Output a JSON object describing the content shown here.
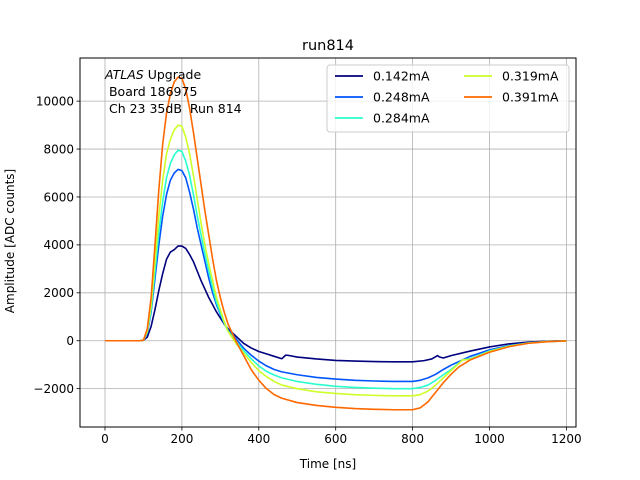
{
  "chart_data": {
    "type": "line",
    "title": "run814",
    "xlabel": "Time [ns]",
    "ylabel": "Amplitude [ADC counts]",
    "xlim": [
      -65,
      1225
    ],
    "ylim": [
      -3600,
      11800
    ],
    "xticks": [
      0,
      200,
      400,
      600,
      800,
      1000,
      1200
    ],
    "yticks": [
      -2000,
      0,
      2000,
      4000,
      6000,
      8000,
      10000
    ],
    "grid": true,
    "legend_position": "top-right",
    "legend_columns": 2,
    "annotation": {
      "line1_italic": "ATLAS",
      "line1_rest": " Upgrade",
      "line2": " Board 186975",
      "line3": " Ch 23 35dB  Run 814"
    },
    "series": [
      {
        "name": "0.142mA",
        "color": "#00007f",
        "points": [
          [
            0,
            0
          ],
          [
            90,
            0
          ],
          [
            100,
            20
          ],
          [
            110,
            150
          ],
          [
            120,
            600
          ],
          [
            130,
            1300
          ],
          [
            140,
            2100
          ],
          [
            150,
            2800
          ],
          [
            160,
            3400
          ],
          [
            170,
            3700
          ],
          [
            180,
            3800
          ],
          [
            190,
            3950
          ],
          [
            200,
            3950
          ],
          [
            210,
            3850
          ],
          [
            220,
            3600
          ],
          [
            230,
            3300
          ],
          [
            240,
            2900
          ],
          [
            250,
            2500
          ],
          [
            260,
            2150
          ],
          [
            270,
            1800
          ],
          [
            280,
            1500
          ],
          [
            290,
            1200
          ],
          [
            300,
            950
          ],
          [
            310,
            700
          ],
          [
            320,
            500
          ],
          [
            340,
            200
          ],
          [
            360,
            -100
          ],
          [
            380,
            -300
          ],
          [
            400,
            -450
          ],
          [
            420,
            -550
          ],
          [
            440,
            -650
          ],
          [
            460,
            -750
          ],
          [
            470,
            -600
          ],
          [
            480,
            -620
          ],
          [
            500,
            -680
          ],
          [
            550,
            -760
          ],
          [
            600,
            -820
          ],
          [
            650,
            -850
          ],
          [
            700,
            -870
          ],
          [
            750,
            -880
          ],
          [
            800,
            -880
          ],
          [
            830,
            -830
          ],
          [
            850,
            -760
          ],
          [
            865,
            -620
          ],
          [
            870,
            -680
          ],
          [
            880,
            -720
          ],
          [
            900,
            -620
          ],
          [
            950,
            -430
          ],
          [
            1000,
            -260
          ],
          [
            1050,
            -130
          ],
          [
            1100,
            -60
          ],
          [
            1150,
            -20
          ],
          [
            1200,
            0
          ]
        ]
      },
      {
        "name": "0.248mA",
        "color": "#0055ff",
        "points": [
          [
            0,
            0
          ],
          [
            90,
            0
          ],
          [
            100,
            20
          ],
          [
            110,
            300
          ],
          [
            120,
            1200
          ],
          [
            130,
            2600
          ],
          [
            140,
            4000
          ],
          [
            150,
            5200
          ],
          [
            160,
            6100
          ],
          [
            170,
            6700
          ],
          [
            180,
            7000
          ],
          [
            190,
            7150
          ],
          [
            200,
            7100
          ],
          [
            210,
            6800
          ],
          [
            220,
            6200
          ],
          [
            230,
            5500
          ],
          [
            240,
            4700
          ],
          [
            250,
            4000
          ],
          [
            260,
            3300
          ],
          [
            270,
            2600
          ],
          [
            280,
            2000
          ],
          [
            290,
            1500
          ],
          [
            300,
            1100
          ],
          [
            310,
            750
          ],
          [
            320,
            450
          ],
          [
            340,
            100
          ],
          [
            360,
            -300
          ],
          [
            380,
            -600
          ],
          [
            400,
            -850
          ],
          [
            420,
            -1050
          ],
          [
            440,
            -1200
          ],
          [
            460,
            -1300
          ],
          [
            500,
            -1420
          ],
          [
            550,
            -1530
          ],
          [
            600,
            -1600
          ],
          [
            650,
            -1650
          ],
          [
            700,
            -1680
          ],
          [
            750,
            -1700
          ],
          [
            800,
            -1700
          ],
          [
            820,
            -1650
          ],
          [
            840,
            -1550
          ],
          [
            860,
            -1400
          ],
          [
            880,
            -1200
          ],
          [
            900,
            -1020
          ],
          [
            950,
            -650
          ],
          [
            1000,
            -380
          ],
          [
            1050,
            -200
          ],
          [
            1100,
            -90
          ],
          [
            1150,
            -30
          ],
          [
            1200,
            -10
          ]
        ]
      },
      {
        "name": "0.284mA",
        "color": "#29ffce",
        "points": [
          [
            0,
            0
          ],
          [
            90,
            0
          ],
          [
            100,
            20
          ],
          [
            110,
            350
          ],
          [
            120,
            1300
          ],
          [
            130,
            2900
          ],
          [
            140,
            4500
          ],
          [
            150,
            5800
          ],
          [
            160,
            6800
          ],
          [
            170,
            7400
          ],
          [
            180,
            7750
          ],
          [
            190,
            7950
          ],
          [
            200,
            7900
          ],
          [
            210,
            7500
          ],
          [
            220,
            6900
          ],
          [
            230,
            6100
          ],
          [
            240,
            5200
          ],
          [
            250,
            4400
          ],
          [
            260,
            3600
          ],
          [
            270,
            2900
          ],
          [
            280,
            2200
          ],
          [
            290,
            1600
          ],
          [
            300,
            1150
          ],
          [
            310,
            750
          ],
          [
            320,
            400
          ],
          [
            340,
            0
          ],
          [
            360,
            -400
          ],
          [
            380,
            -750
          ],
          [
            400,
            -1050
          ],
          [
            420,
            -1280
          ],
          [
            440,
            -1430
          ],
          [
            460,
            -1550
          ],
          [
            500,
            -1700
          ],
          [
            550,
            -1820
          ],
          [
            600,
            -1900
          ],
          [
            650,
            -1950
          ],
          [
            700,
            -1980
          ],
          [
            750,
            -2000
          ],
          [
            800,
            -2000
          ],
          [
            820,
            -1950
          ],
          [
            840,
            -1850
          ],
          [
            860,
            -1650
          ],
          [
            880,
            -1420
          ],
          [
            900,
            -1200
          ],
          [
            930,
            -800
          ],
          [
            950,
            -750
          ],
          [
            1000,
            -430
          ],
          [
            1050,
            -220
          ],
          [
            1100,
            -100
          ],
          [
            1150,
            -35
          ],
          [
            1200,
            -10
          ]
        ]
      },
      {
        "name": "0.319mA",
        "color": "#ceff29",
        "points": [
          [
            0,
            0
          ],
          [
            90,
            0
          ],
          [
            100,
            20
          ],
          [
            110,
            400
          ],
          [
            120,
            1500
          ],
          [
            130,
            3300
          ],
          [
            140,
            5200
          ],
          [
            150,
            6700
          ],
          [
            160,
            7800
          ],
          [
            170,
            8400
          ],
          [
            180,
            8800
          ],
          [
            190,
            9000
          ],
          [
            200,
            8950
          ],
          [
            210,
            8500
          ],
          [
            220,
            7800
          ],
          [
            230,
            6900
          ],
          [
            240,
            5900
          ],
          [
            250,
            4900
          ],
          [
            260,
            4000
          ],
          [
            270,
            3200
          ],
          [
            280,
            2500
          ],
          [
            290,
            1800
          ],
          [
            300,
            1300
          ],
          [
            310,
            800
          ],
          [
            320,
            400
          ],
          [
            340,
            -100
          ],
          [
            360,
            -500
          ],
          [
            380,
            -900
          ],
          [
            400,
            -1250
          ],
          [
            420,
            -1500
          ],
          [
            440,
            -1700
          ],
          [
            460,
            -1850
          ],
          [
            500,
            -2000
          ],
          [
            550,
            -2130
          ],
          [
            600,
            -2200
          ],
          [
            650,
            -2250
          ],
          [
            700,
            -2280
          ],
          [
            750,
            -2300
          ],
          [
            800,
            -2300
          ],
          [
            820,
            -2250
          ],
          [
            840,
            -2100
          ],
          [
            860,
            -1850
          ],
          [
            880,
            -1550
          ],
          [
            900,
            -1250
          ],
          [
            930,
            -800
          ],
          [
            950,
            -780
          ],
          [
            1000,
            -450
          ],
          [
            1050,
            -230
          ],
          [
            1100,
            -100
          ],
          [
            1150,
            -35
          ],
          [
            1200,
            -10
          ]
        ]
      },
      {
        "name": "0.391mA",
        "color": "#ff6800",
        "points": [
          [
            0,
            0
          ],
          [
            90,
            0
          ],
          [
            100,
            20
          ],
          [
            110,
            500
          ],
          [
            120,
            1800
          ],
          [
            130,
            4000
          ],
          [
            140,
            6300
          ],
          [
            150,
            8200
          ],
          [
            160,
            9500
          ],
          [
            170,
            10300
          ],
          [
            180,
            10800
          ],
          [
            190,
            11000
          ],
          [
            200,
            10950
          ],
          [
            210,
            10500
          ],
          [
            220,
            9700
          ],
          [
            230,
            8700
          ],
          [
            240,
            7600
          ],
          [
            250,
            6500
          ],
          [
            260,
            5400
          ],
          [
            270,
            4400
          ],
          [
            280,
            3400
          ],
          [
            290,
            2500
          ],
          [
            300,
            1800
          ],
          [
            310,
            1200
          ],
          [
            320,
            700
          ],
          [
            340,
            0
          ],
          [
            360,
            -600
          ],
          [
            380,
            -1200
          ],
          [
            400,
            -1650
          ],
          [
            420,
            -2000
          ],
          [
            440,
            -2250
          ],
          [
            460,
            -2400
          ],
          [
            500,
            -2580
          ],
          [
            550,
            -2700
          ],
          [
            600,
            -2780
          ],
          [
            650,
            -2830
          ],
          [
            700,
            -2860
          ],
          [
            750,
            -2880
          ],
          [
            800,
            -2880
          ],
          [
            820,
            -2800
          ],
          [
            840,
            -2550
          ],
          [
            860,
            -2150
          ],
          [
            880,
            -1750
          ],
          [
            900,
            -1400
          ],
          [
            920,
            -1100
          ],
          [
            950,
            -800
          ],
          [
            1000,
            -480
          ],
          [
            1050,
            -250
          ],
          [
            1100,
            -110
          ],
          [
            1150,
            -40
          ],
          [
            1200,
            -10
          ]
        ]
      }
    ]
  }
}
